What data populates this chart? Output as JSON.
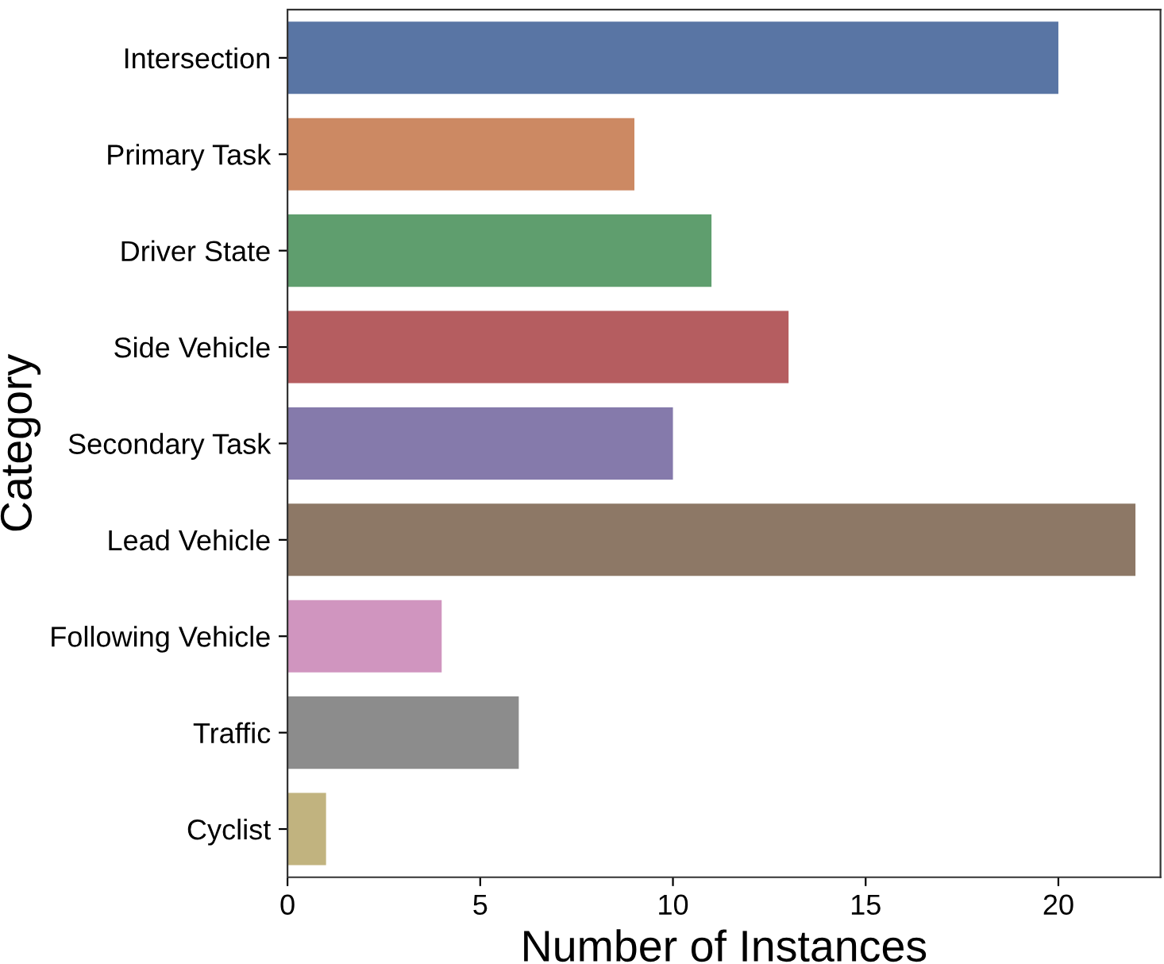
{
  "chart_data": {
    "type": "bar",
    "orientation": "horizontal",
    "xlabel": "Number of Instances",
    "ylabel": "Category",
    "categories": [
      "Intersection",
      "Primary Task",
      "Driver State",
      "Side Vehicle",
      "Secondary Task",
      "Lead Vehicle",
      "Following Vehicle",
      "Traffic",
      "Cyclist"
    ],
    "values": [
      20,
      9,
      11,
      13,
      10,
      22,
      4,
      6,
      1
    ],
    "colors": [
      "#5975a4",
      "#cc8963",
      "#5f9e6e",
      "#b55d60",
      "#857aab",
      "#8d7866",
      "#d095bf",
      "#8c8c8c",
      "#c1b37f"
    ],
    "xlim": [
      0,
      22.65
    ],
    "xticks": [
      0,
      5,
      10,
      15,
      20
    ],
    "grid": false,
    "legend": false
  }
}
